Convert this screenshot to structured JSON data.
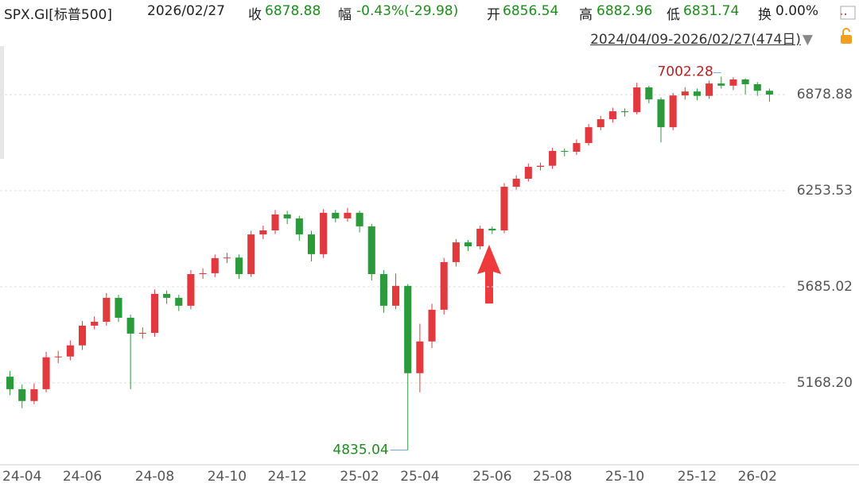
{
  "header": {
    "symbol": "SPX.GI[标普500]",
    "date": "2026/02/27",
    "fields": [
      {
        "label": "收",
        "value": "6878.88",
        "color": "#1e8c1e"
      },
      {
        "label": "幅",
        "value": "-0.43%(-29.98)",
        "color": "#1e8c1e"
      },
      {
        "label": "开",
        "value": "6856.54",
        "color": "#1e8c1e"
      },
      {
        "label": "高",
        "value": "6882.96",
        "color": "#1e8c1e"
      },
      {
        "label": "低",
        "value": "6831.74",
        "color": "#1e8c1e"
      },
      {
        "label": "换",
        "value": "0.00%",
        "color": "#222222"
      }
    ],
    "more": "..",
    "range": "2024/04/09-2026/02/27(474日)"
  },
  "chart_data": {
    "type": "candlestick",
    "log_scale": true,
    "grid": true,
    "up_color": "#e0393e",
    "down_color": "#2a9a3a",
    "high_label_color": "#b22222",
    "low_label_color": "#1e8c1e",
    "ylim": [
      4765,
      7218
    ],
    "yticks": [
      {
        "value": 5168.2,
        "label": "5168.20"
      },
      5685.02,
      6253.53,
      6878.88
    ],
    "categories": [
      null,
      "24-04",
      null,
      null,
      null,
      null,
      "24-06",
      null,
      null,
      null,
      null,
      null,
      "24-08",
      null,
      null,
      null,
      null,
      null,
      "24-10",
      null,
      null,
      null,
      null,
      "24-12",
      null,
      null,
      null,
      null,
      null,
      "25-02",
      null,
      null,
      null,
      null,
      "25-04",
      null,
      null,
      null,
      null,
      null,
      "25-06",
      null,
      null,
      null,
      null,
      "25-08",
      null,
      null,
      null,
      null,
      null,
      "25-10",
      null,
      null,
      null,
      null,
      null,
      "25-12",
      null,
      null,
      null,
      null,
      "26-02",
      null
    ],
    "open": [
      5200,
      5136,
      5076,
      5136,
      5301,
      5305,
      5364,
      5470,
      5491,
      5623,
      5513,
      5427,
      5431,
      5645,
      5623,
      5579,
      5757,
      5762,
      5849,
      5852,
      5757,
      5988,
      6012,
      6108,
      6084,
      5988,
      5872,
      6118,
      6084,
      6118,
      6036,
      5757,
      5579,
      5690,
      5218,
      5385,
      5557,
      5826,
      5941,
      5918,
      6022,
      6012,
      6278,
      6328,
      6403,
      6410,
      6505,
      6500,
      6556,
      6660,
      6713,
      6766,
      6760,
      6928,
      6846,
      6660,
      6873,
      6900,
      6870,
      6955,
      6940,
      6983,
      6950,
      6905
    ],
    "high": [
      5230,
      5160,
      5165,
      5330,
      5335,
      5390,
      5495,
      5520,
      5650,
      5640,
      5530,
      5460,
      5670,
      5665,
      5640,
      5780,
      5790,
      5870,
      5880,
      5870,
      6010,
      6040,
      6135,
      6130,
      6100,
      6010,
      6140,
      6135,
      6147,
      6130,
      6050,
      5780,
      5760,
      5700,
      5480,
      5590,
      5850,
      5960,
      5955,
      6040,
      6035,
      6300,
      6350,
      6425,
      6430,
      6525,
      6520,
      6580,
      6680,
      6735,
      6790,
      6785,
      6960,
      6940,
      6860,
      6890,
      6930,
      6920,
      6975,
      7002.28,
      6998,
      6990,
      6965,
      6920
    ],
    "low": [
      5105,
      5040,
      5060,
      5120,
      5270,
      5285,
      5340,
      5450,
      5470,
      5490,
      5136,
      5400,
      5410,
      5590,
      5550,
      5560,
      5730,
      5740,
      5820,
      5730,
      5740,
      5960,
      5990,
      6050,
      5950,
      5830,
      5850,
      6060,
      6065,
      6000,
      5720,
      5540,
      5560,
      4835.04,
      5120,
      5350,
      5530,
      5800,
      5890,
      5900,
      5990,
      5995,
      6260,
      6310,
      6380,
      6390,
      6470,
      6480,
      6540,
      6640,
      6690,
      6730,
      6745,
      6820,
      6560,
      6640,
      6845,
      6840,
      6850,
      6920,
      6910,
      6880,
      6870,
      6830
    ],
    "close": [
      5136,
      5076,
      5136,
      5301,
      5305,
      5364,
      5470,
      5491,
      5623,
      5513,
      5427,
      5431,
      5645,
      5623,
      5579,
      5757,
      5762,
      5849,
      5852,
      5757,
      5988,
      6012,
      6108,
      6084,
      5988,
      5872,
      6118,
      6084,
      6118,
      6036,
      5757,
      5579,
      5690,
      5218,
      5385,
      5557,
      5826,
      5941,
      5918,
      6022,
      6012,
      6278,
      6328,
      6403,
      6410,
      6505,
      6500,
      6556,
      6660,
      6713,
      6766,
      6760,
      6928,
      6846,
      6660,
      6873,
      6900,
      6870,
      6955,
      6940,
      6983,
      6950,
      6905,
      6878.88
    ]
  }
}
